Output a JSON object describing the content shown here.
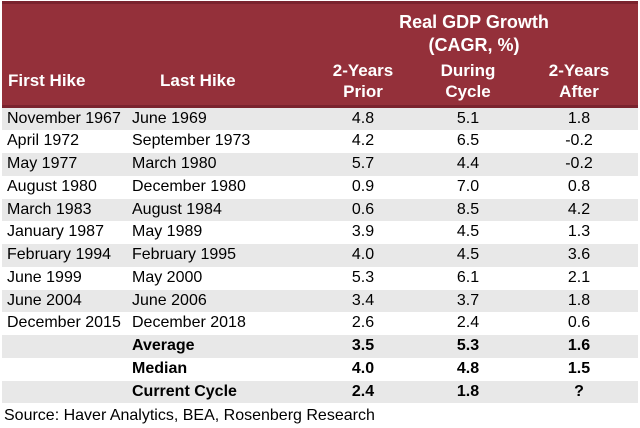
{
  "table": {
    "title": "Real GDP Growth\n(CAGR, %)",
    "columns": {
      "first_hike": "First Hike",
      "last_hike": "Last Hike",
      "prior": "2-Years\nPrior",
      "during": "During\nCycle",
      "after": "2-Years\nAfter"
    },
    "rows": [
      {
        "first": "November 1967",
        "last": "June 1969",
        "prior": "4.8",
        "during": "5.1",
        "after": "1.8"
      },
      {
        "first": "April 1972",
        "last": "September 1973",
        "prior": "4.2",
        "during": "6.5",
        "after": "-0.2"
      },
      {
        "first": "May 1977",
        "last": "March 1980",
        "prior": "5.7",
        "during": "4.4",
        "after": "-0.2"
      },
      {
        "first": "August 1980",
        "last": "December 1980",
        "prior": "0.9",
        "during": "7.0",
        "after": "0.8"
      },
      {
        "first": "March 1983",
        "last": "August 1984",
        "prior": "0.6",
        "during": "8.5",
        "after": "4.2"
      },
      {
        "first": "January 1987",
        "last": "May 1989",
        "prior": "3.9",
        "during": "4.5",
        "after": "1.3"
      },
      {
        "first": "February 1994",
        "last": "February 1995",
        "prior": "4.0",
        "during": "4.5",
        "after": "3.6"
      },
      {
        "first": "June 1999",
        "last": "May 2000",
        "prior": "5.3",
        "during": "6.1",
        "after": "2.1"
      },
      {
        "first": "June 2004",
        "last": "June 2006",
        "prior": "3.4",
        "during": "3.7",
        "after": "1.8"
      },
      {
        "first": "December 2015",
        "last": "December 2018",
        "prior": "2.6",
        "during": "2.4",
        "after": "0.6"
      }
    ],
    "summary": [
      {
        "label": "Average",
        "prior": "3.5",
        "during": "5.3",
        "after": "1.6"
      },
      {
        "label": "Median",
        "prior": "4.0",
        "during": "4.8",
        "after": "1.5"
      },
      {
        "label": "Current Cycle",
        "prior": "2.4",
        "during": "1.8",
        "after": "?"
      }
    ]
  },
  "source": "Source: Haver Analytics, BEA, Rosenberg Research",
  "colors": {
    "header_bg": "#94303A",
    "header_border": "#7A232E",
    "stripe": "#E8E8E8",
    "text": "#000000"
  },
  "chart_data": {
    "type": "table",
    "title": "Real GDP Growth (CAGR, %)",
    "columns": [
      "First Hike",
      "Last Hike",
      "2-Years Prior",
      "During Cycle",
      "2-Years After"
    ],
    "rows": [
      [
        "November 1967",
        "June 1969",
        4.8,
        5.1,
        1.8
      ],
      [
        "April 1972",
        "September 1973",
        4.2,
        6.5,
        -0.2
      ],
      [
        "May 1977",
        "March 1980",
        5.7,
        4.4,
        -0.2
      ],
      [
        "August 1980",
        "December 1980",
        0.9,
        7.0,
        0.8
      ],
      [
        "March 1983",
        "August 1984",
        0.6,
        8.5,
        4.2
      ],
      [
        "January 1987",
        "May 1989",
        3.9,
        4.5,
        1.3
      ],
      [
        "February 1994",
        "February 1995",
        4.0,
        4.5,
        3.6
      ],
      [
        "June 1999",
        "May 2000",
        5.3,
        6.1,
        2.1
      ],
      [
        "June 2004",
        "June 2006",
        3.4,
        3.7,
        1.8
      ],
      [
        "December 2015",
        "December 2018",
        2.6,
        2.4,
        0.6
      ]
    ],
    "summary_rows": [
      [
        "Average",
        3.5,
        5.3,
        1.6
      ],
      [
        "Median",
        4.0,
        4.8,
        1.5
      ],
      [
        "Current Cycle",
        2.4,
        1.8,
        "?"
      ]
    ],
    "source": "Source: Haver Analytics, BEA, Rosenberg Research"
  }
}
